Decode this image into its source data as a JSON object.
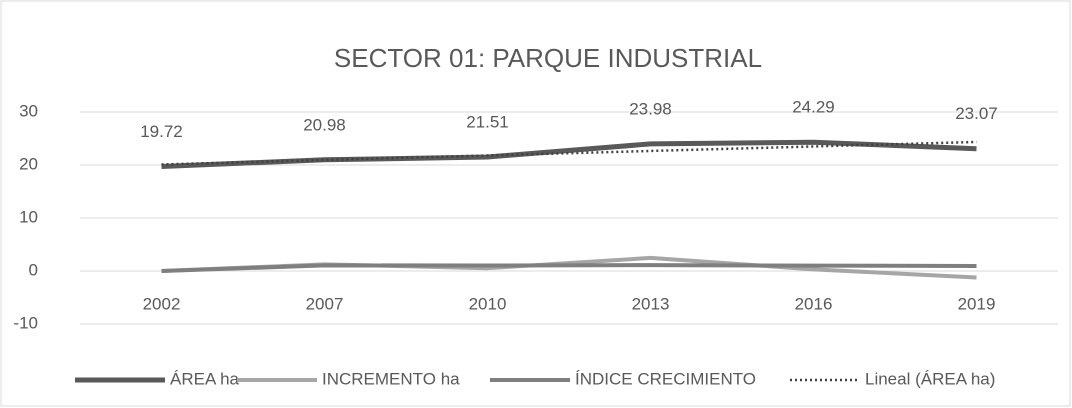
{
  "chart_data": {
    "type": "line",
    "title": "SECTOR 01: PARQUE INDUSTRIAL",
    "categories": [
      "2002",
      "2007",
      "2010",
      "2013",
      "2016",
      "2019"
    ],
    "series": [
      {
        "name": "ÁREA ha",
        "color": "#595959",
        "line_style": "solid",
        "data_labels": true,
        "values": [
          19.72,
          20.98,
          21.51,
          23.98,
          24.29,
          23.07
        ]
      },
      {
        "name": "INCREMENTO ha",
        "color": "#a6a6a6",
        "line_style": "solid",
        "values": [
          0,
          1.26,
          0.53,
          2.47,
          0.31,
          -1.22
        ]
      },
      {
        "name": "ÍNDICE CRECIMIENTO",
        "color": "#7f7f7f",
        "line_style": "solid",
        "values": [
          0,
          1.06,
          1.03,
          1.11,
          1.01,
          0.95
        ]
      },
      {
        "name": "Lineal (ÁREA ha)",
        "color": "#404040",
        "line_style": "dotted",
        "values": [
          20.1,
          20.95,
          21.8,
          22.65,
          23.5,
          24.35
        ]
      }
    ],
    "ylim": [
      -10,
      30
    ],
    "yticks": [
      -10,
      0,
      10,
      20,
      30
    ],
    "grid": true,
    "legend": "bottom"
  }
}
